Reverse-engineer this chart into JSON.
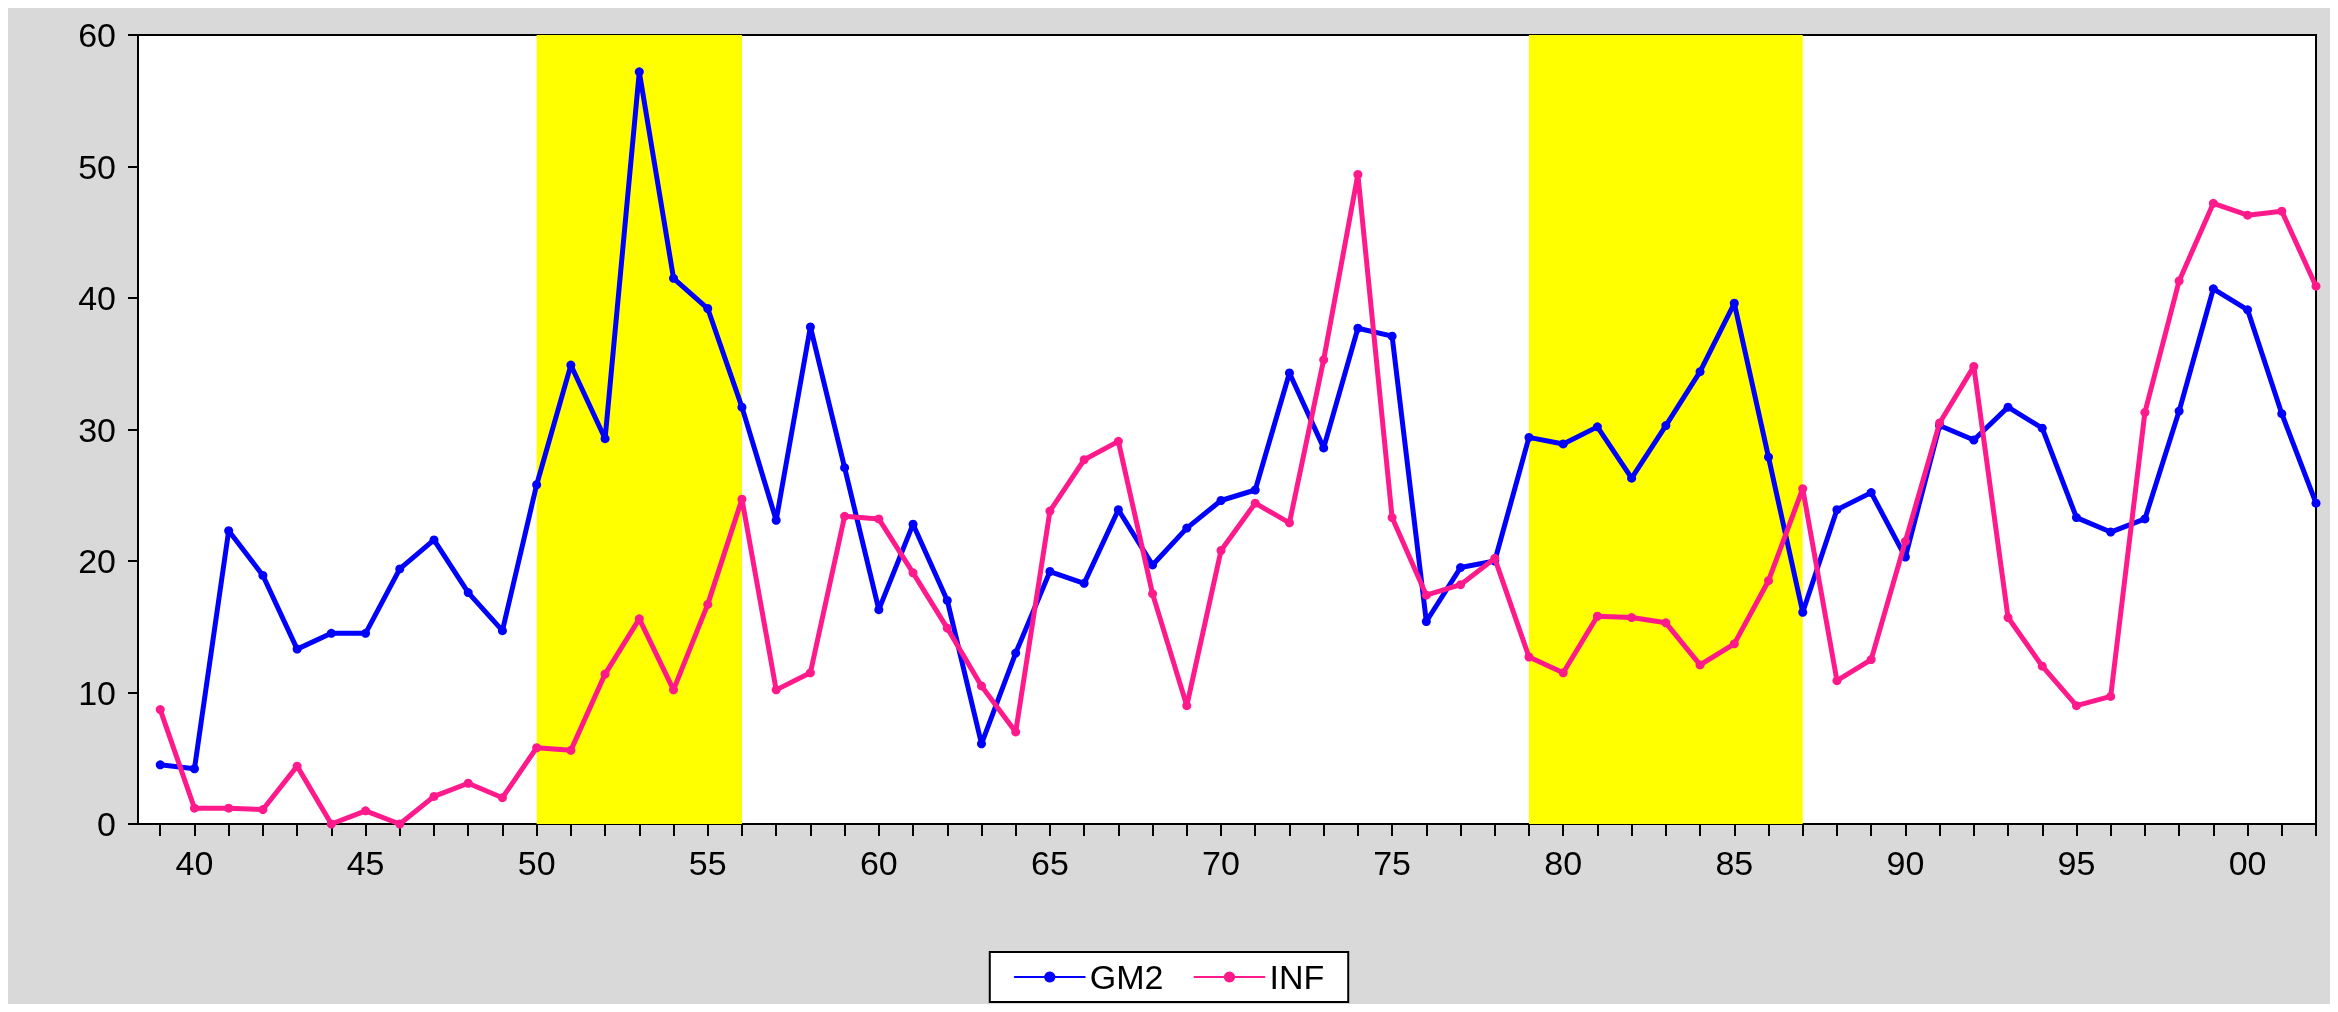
{
  "chart_data": {
    "type": "line",
    "x": [
      1939,
      1940,
      1941,
      1942,
      1943,
      1944,
      1945,
      1946,
      1947,
      1948,
      1949,
      1950,
      1951,
      1952,
      1953,
      1954,
      1955,
      1956,
      1957,
      1958,
      1959,
      1960,
      1961,
      1962,
      1963,
      1964,
      1965,
      1966,
      1967,
      1968,
      1969,
      1970,
      1971,
      1972,
      1973,
      1974,
      1975,
      1976,
      1977,
      1978,
      1979,
      1980,
      1981,
      1982,
      1983,
      1984,
      1985,
      1986,
      1987,
      1988,
      1989,
      1990,
      1991,
      1992,
      1993,
      1994,
      1995,
      1996,
      1997,
      1998,
      1999,
      2000,
      2001,
      2002
    ],
    "series": [
      {
        "name": "GM2",
        "color": "#0000ff",
        "values": [
          4.5,
          4.2,
          22.3,
          18.9,
          13.3,
          14.5,
          14.5,
          19.4,
          21.6,
          17.6,
          14.7,
          25.8,
          34.9,
          29.3,
          57.2,
          41.5,
          39.2,
          31.7,
          23.1,
          37.8,
          27.1,
          16.3,
          22.8,
          17.0,
          6.1,
          13.0,
          19.2,
          18.3,
          23.9,
          19.7,
          22.5,
          24.6,
          25.4,
          34.3,
          28.6,
          37.7,
          37.1,
          15.4,
          19.5,
          20.0,
          29.4,
          28.9,
          30.2,
          26.3,
          30.3,
          34.4,
          39.6,
          27.9,
          16.1,
          23.9,
          25.2,
          20.3,
          30.3,
          29.2,
          31.7,
          30.1,
          23.3,
          22.2,
          23.2,
          31.4,
          40.7,
          39.1,
          31.2,
          24.4
        ]
      },
      {
        "name": "INF",
        "color": "#ff1a8c",
        "values": [
          8.7,
          1.2,
          1.2,
          1.1,
          4.4,
          0.0,
          1.0,
          0.0,
          2.1,
          3.1,
          2.0,
          5.8,
          5.6,
          11.4,
          15.6,
          10.2,
          16.7,
          24.7,
          10.2,
          11.5,
          23.4,
          23.2,
          19.1,
          14.9,
          10.5,
          7.0,
          23.8,
          27.7,
          29.1,
          17.5,
          9.0,
          20.8,
          24.4,
          22.9,
          35.3,
          49.4,
          23.3,
          17.4,
          18.2,
          20.2,
          12.7,
          11.5,
          15.8,
          15.7,
          15.3,
          12.1,
          13.7,
          18.5,
          25.5,
          10.9,
          12.5,
          21.5,
          30.5,
          34.8,
          15.7,
          12.0,
          9.0,
          9.7,
          31.3,
          41.3,
          47.2,
          46.3,
          46.6,
          40.9
        ]
      }
    ],
    "xlim": [
      1938.35,
      2002
    ],
    "xticks": [
      {
        "value": 1939,
        "label": null
      },
      {
        "value": 1940,
        "label": "40"
      },
      {
        "value": 1941,
        "label": null
      },
      {
        "value": 1942,
        "label": null
      },
      {
        "value": 1943,
        "label": null
      },
      {
        "value": 1944,
        "label": null
      },
      {
        "value": 1945,
        "label": "45"
      },
      {
        "value": 1946,
        "label": null
      },
      {
        "value": 1947,
        "label": null
      },
      {
        "value": 1948,
        "label": null
      },
      {
        "value": 1949,
        "label": null
      },
      {
        "value": 1950,
        "label": "50"
      },
      {
        "value": 1951,
        "label": null
      },
      {
        "value": 1952,
        "label": null
      },
      {
        "value": 1953,
        "label": null
      },
      {
        "value": 1954,
        "label": null
      },
      {
        "value": 1955,
        "label": "55"
      },
      {
        "value": 1956,
        "label": null
      },
      {
        "value": 1957,
        "label": null
      },
      {
        "value": 1958,
        "label": null
      },
      {
        "value": 1959,
        "label": null
      },
      {
        "value": 1960,
        "label": "60"
      },
      {
        "value": 1961,
        "label": null
      },
      {
        "value": 1962,
        "label": null
      },
      {
        "value": 1963,
        "label": null
      },
      {
        "value": 1964,
        "label": null
      },
      {
        "value": 1965,
        "label": "65"
      },
      {
        "value": 1966,
        "label": null
      },
      {
        "value": 1967,
        "label": null
      },
      {
        "value": 1968,
        "label": null
      },
      {
        "value": 1969,
        "label": null
      },
      {
        "value": 1970,
        "label": "70"
      },
      {
        "value": 1971,
        "label": null
      },
      {
        "value": 1972,
        "label": null
      },
      {
        "value": 1973,
        "label": null
      },
      {
        "value": 1974,
        "label": null
      },
      {
        "value": 1975,
        "label": "75"
      },
      {
        "value": 1976,
        "label": null
      },
      {
        "value": 1977,
        "label": null
      },
      {
        "value": 1978,
        "label": null
      },
      {
        "value": 1979,
        "label": null
      },
      {
        "value": 1980,
        "label": "80"
      },
      {
        "value": 1981,
        "label": null
      },
      {
        "value": 1982,
        "label": null
      },
      {
        "value": 1983,
        "label": null
      },
      {
        "value": 1984,
        "label": null
      },
      {
        "value": 1985,
        "label": "85"
      },
      {
        "value": 1986,
        "label": null
      },
      {
        "value": 1987,
        "label": null
      },
      {
        "value": 1988,
        "label": null
      },
      {
        "value": 1989,
        "label": null
      },
      {
        "value": 1990,
        "label": "90"
      },
      {
        "value": 1991,
        "label": null
      },
      {
        "value": 1992,
        "label": null
      },
      {
        "value": 1993,
        "label": null
      },
      {
        "value": 1994,
        "label": null
      },
      {
        "value": 1995,
        "label": "95"
      },
      {
        "value": 1996,
        "label": null
      },
      {
        "value": 1997,
        "label": null
      },
      {
        "value": 1998,
        "label": null
      },
      {
        "value": 1999,
        "label": null
      },
      {
        "value": 2000,
        "label": "00"
      },
      {
        "value": 2001,
        "label": null
      },
      {
        "value": 2002,
        "label": null
      }
    ],
    "ylim": [
      0,
      60
    ],
    "yticks": [
      0,
      10,
      20,
      30,
      40,
      50,
      60
    ],
    "bands": [
      {
        "axis": "x",
        "from": 1950,
        "to": 1956,
        "color": "#ffff00"
      },
      {
        "axis": "x",
        "from": 1979,
        "to": 1987,
        "color": "#ffff00"
      }
    ],
    "grid": false,
    "legend": "bottom",
    "marker": "circle",
    "line_style": "solid"
  }
}
